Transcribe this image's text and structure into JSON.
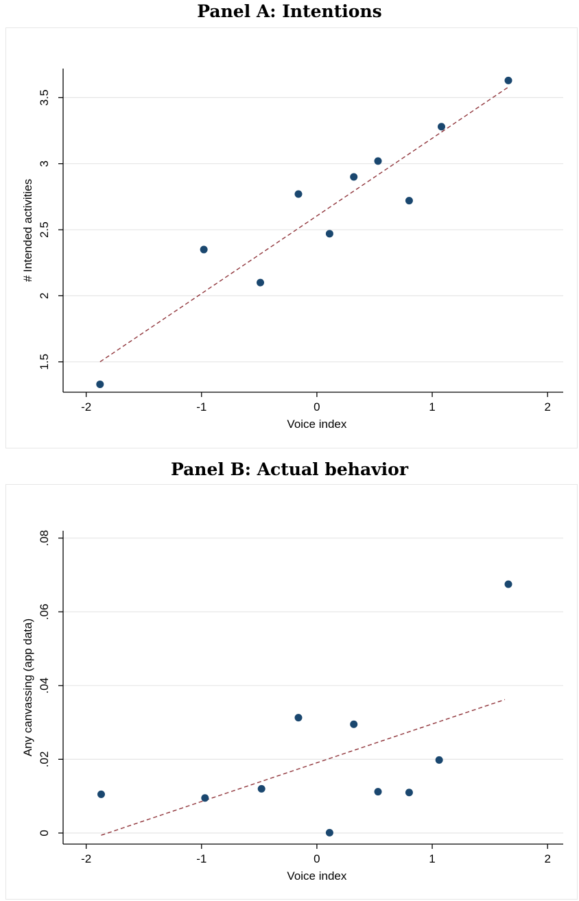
{
  "chart_data": [
    {
      "type": "scatter",
      "title": "Panel A: Intentions",
      "xlabel": "Voice index",
      "ylabel": "# Intended activities",
      "xlim": [
        -2.2,
        2.1
      ],
      "ylim": [
        1.27,
        3.72
      ],
      "xticks": [
        -2,
        -1,
        0,
        1,
        2
      ],
      "xtick_labels": [
        "-2",
        "-1",
        "0",
        "1",
        "2"
      ],
      "yticks": [
        1.5,
        2,
        2.5,
        3,
        3.5
      ],
      "ytick_labels": [
        "1.5",
        "2",
        "2.5",
        "3",
        "3.5"
      ],
      "grid": true,
      "legend": "none",
      "series": [
        {
          "x": [
            -1.88,
            -0.98,
            -0.49,
            -0.16,
            0.11,
            0.32,
            0.53,
            0.8,
            1.08,
            1.66
          ],
          "y": [
            1.33,
            2.35,
            2.1,
            2.77,
            2.47,
            2.9,
            3.02,
            2.72,
            3.28,
            3.63
          ],
          "color": "#1a476f",
          "marker": "circle"
        }
      ],
      "fit_line": {
        "x": [
          -1.88,
          1.66
        ],
        "y": [
          1.5,
          3.58
        ],
        "color": "#90353b",
        "style": "dashed"
      }
    },
    {
      "type": "scatter",
      "title": "Panel B: Actual behavior",
      "xlabel": "Voice index",
      "ylabel": "Any canvassing (app data)",
      "xlim": [
        -2.2,
        2.1
      ],
      "ylim": [
        -0.003,
        0.082
      ],
      "xticks": [
        -2,
        -1,
        0,
        1,
        2
      ],
      "xtick_labels": [
        "-2",
        "-1",
        "0",
        "1",
        "2"
      ],
      "yticks": [
        0,
        0.02,
        0.04,
        0.06,
        0.08
      ],
      "ytick_labels": [
        "0",
        ".02",
        ".04",
        ".06",
        ".08"
      ],
      "grid": true,
      "legend": "none",
      "series": [
        {
          "x": [
            -1.87,
            -0.97,
            -0.48,
            -0.16,
            0.11,
            0.32,
            0.53,
            0.8,
            1.06,
            1.66
          ],
          "y": [
            0.0105,
            0.0095,
            0.012,
            0.0313,
            0.0001,
            0.0295,
            0.0112,
            0.011,
            0.0198,
            0.0675
          ],
          "color": "#1a476f",
          "marker": "circle"
        }
      ],
      "fit_line": {
        "x": [
          -1.87,
          1.63
        ],
        "y": [
          -0.0006,
          0.0362
        ],
        "color": "#90353b",
        "style": "dashed"
      }
    }
  ]
}
